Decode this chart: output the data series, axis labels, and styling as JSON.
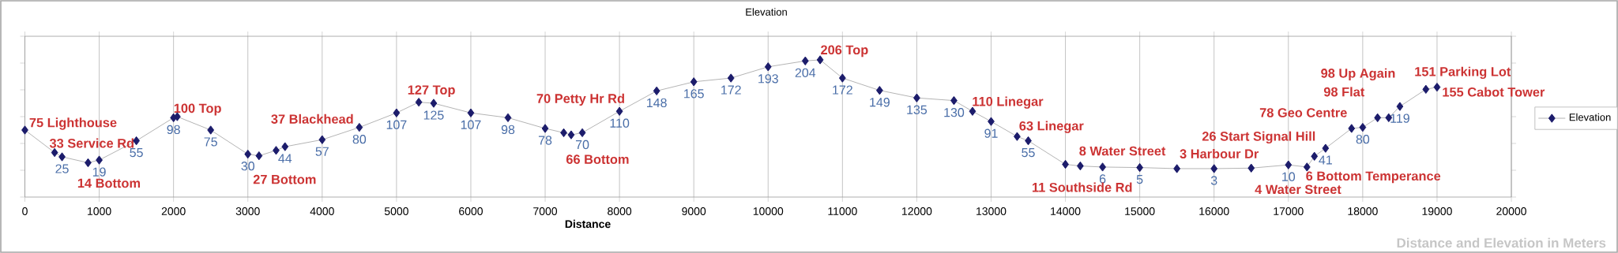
{
  "chart_data": {
    "type": "line",
    "title": "Elevation",
    "xlabel": "Distance",
    "xlim": [
      0,
      20000
    ],
    "xticks": [
      0,
      1000,
      2000,
      3000,
      4000,
      5000,
      6000,
      7000,
      8000,
      9000,
      10000,
      11000,
      12000,
      13000,
      14000,
      15000,
      16000,
      17000,
      18000,
      19000,
      20000
    ],
    "ylim": [
      -50,
      250
    ],
    "yticks": [
      {
        "value": -50,
        "label": null
      },
      {
        "value": 0,
        "label": null
      },
      {
        "value": 50,
        "label": null
      },
      {
        "value": 100,
        "label": null
      },
      {
        "value": 150,
        "label": null
      },
      {
        "value": 200,
        "label": null
      },
      {
        "value": 250,
        "label": null
      }
    ],
    "tick_labels": "x",
    "grid": "x",
    "legend": "right",
    "marker": "diamond",
    "line_style": "solid",
    "x": [
      0,
      400,
      500,
      850,
      1000,
      1500,
      2000,
      2050,
      2500,
      3000,
      3150,
      3380,
      3500,
      4000,
      4500,
      5000,
      5300,
      5500,
      6000,
      6500,
      7000,
      7250,
      7350,
      7500,
      8000,
      8500,
      9000,
      9500,
      10000,
      10500,
      10700,
      11000,
      11500,
      12000,
      12500,
      12750,
      13000,
      13350,
      13500,
      14000,
      14200,
      14500,
      15000,
      15500,
      16000,
      16500,
      17000,
      17250,
      17350,
      17500,
      17850,
      18000,
      18200,
      18350,
      18500,
      18850,
      19000
    ],
    "series": [
      {
        "name": "Elevation",
        "color": "#1c1c6b",
        "values": [
          75,
          33,
          25,
          14,
          19,
          55,
          98,
          100,
          75,
          30,
          27,
          37,
          44,
          57,
          80,
          107,
          127,
          125,
          107,
          98,
          78,
          70,
          66,
          70,
          110,
          148,
          165,
          172,
          193,
          204,
          206,
          172,
          149,
          135,
          130,
          110,
          91,
          63,
          55,
          11,
          8,
          6,
          5,
          3,
          3,
          4,
          10,
          6,
          26,
          41,
          78,
          80,
          98,
          98,
          119,
          151,
          155
        ],
        "value_labels": [
          null,
          null,
          "25",
          null,
          "19",
          "55",
          "98",
          null,
          "75",
          "30",
          null,
          null,
          "44",
          "57",
          "80",
          "107",
          null,
          "125",
          "107",
          "98",
          "78",
          null,
          null,
          "70",
          "110",
          "148",
          "165",
          "172",
          "193",
          "204",
          null,
          "172",
          "149",
          "135",
          "130",
          null,
          "91",
          null,
          "55",
          null,
          null,
          "6",
          "5",
          null,
          "3",
          null,
          "10",
          null,
          null,
          "41",
          null,
          "80",
          null,
          null,
          "119",
          null,
          null
        ]
      }
    ],
    "annotations": [
      {
        "text": "75 Lighthouse",
        "x": 0,
        "y": 75
      },
      {
        "text": "33 Service Rd",
        "x": 400,
        "y": 33
      },
      {
        "text": "14 Bottom",
        "x": 850,
        "y": 14
      },
      {
        "text": "100 Top",
        "x": 2050,
        "y": 100
      },
      {
        "text": "27 Bottom",
        "x": 3150,
        "y": 27
      },
      {
        "text": "37 Blackhead",
        "x": 3380,
        "y": 37
      },
      {
        "text": "127 Top",
        "x": 5300,
        "y": 127
      },
      {
        "text": "70 Petty Hr Rd",
        "x": 7250,
        "y": 70
      },
      {
        "text": "66 Bottom",
        "x": 7350,
        "y": 66
      },
      {
        "text": "206 Top",
        "x": 10700,
        "y": 206
      },
      {
        "text": "110 Linegar",
        "x": 12750,
        "y": 110
      },
      {
        "text": "63 Linegar",
        "x": 13350,
        "y": 63
      },
      {
        "text": "11 Southside Rd",
        "x": 14000,
        "y": 11
      },
      {
        "text": "8 Water Street",
        "x": 14200,
        "y": 8
      },
      {
        "text": "3 Harbour Dr",
        "x": 15500,
        "y": 3
      },
      {
        "text": "4 Water Street",
        "x": 16500,
        "y": 4
      },
      {
        "text": "6 Bottom Temperance",
        "x": 17250,
        "y": 6
      },
      {
        "text": "26 Start Signal Hill",
        "x": 17350,
        "y": 26
      },
      {
        "text": "78 Geo Centre",
        "x": 17850,
        "y": 78
      },
      {
        "text": "98 Flat",
        "x": 18200,
        "y": 98
      },
      {
        "text": "98 Up Again",
        "x": 18350,
        "y": 98
      },
      {
        "text": "151 Parking Lot",
        "x": 18850,
        "y": 151
      },
      {
        "text": "155 Cabot Tower",
        "x": 19000,
        "y": 155
      },
      "Distance and Elevation in Meters"
    ]
  }
}
